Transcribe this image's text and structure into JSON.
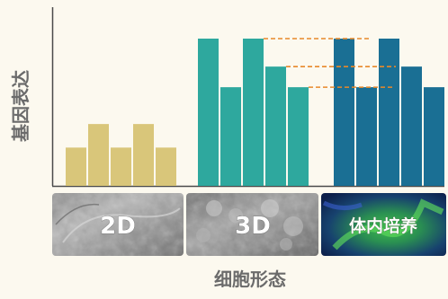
{
  "chart_data": {
    "type": "bar",
    "ylabel": "基因表达",
    "xlabel": "细胞形态",
    "ylim": [
      0,
      100
    ],
    "groups": [
      {
        "name": "2D",
        "color": "#d9c67a",
        "values": [
          26,
          42,
          26,
          42,
          26
        ],
        "panel": "gray"
      },
      {
        "name": "3D",
        "color": "#2ea89e",
        "values": [
          100,
          67,
          100,
          81,
          67
        ],
        "panel": "gray"
      },
      {
        "name": "体内培养",
        "color": "#1a6f94",
        "values": [
          100,
          67,
          100,
          81,
          67
        ],
        "panel": "fluorescent"
      }
    ],
    "reference_lines": [
      {
        "value": 100,
        "color": "#e8892a",
        "style": "dashed"
      },
      {
        "value": 81,
        "color": "#e8892a",
        "style": "dashed"
      },
      {
        "value": 67,
        "color": "#e8892a",
        "style": "dashed"
      }
    ],
    "colors": {
      "axis": "#4a4a4a",
      "background": "#fcf9ef"
    }
  }
}
